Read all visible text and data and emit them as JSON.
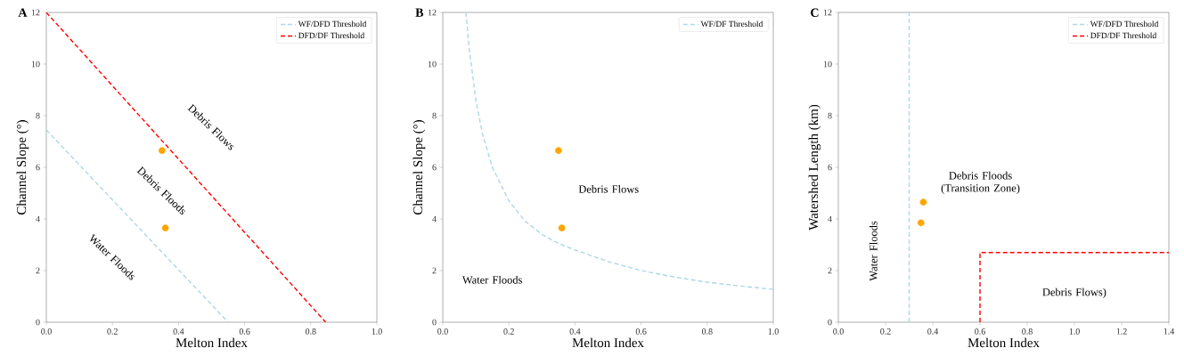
{
  "chart_data": [
    {
      "type": "line",
      "title": "A",
      "xlabel": "Melton Index",
      "ylabel": "Channel Slope (°)",
      "xlim": [
        0,
        1
      ],
      "ylim": [
        0,
        12
      ],
      "xticks": [
        {
          "value": 0,
          "label": "0.0"
        },
        {
          "value": 0.2,
          "label": "0.2"
        },
        {
          "value": 0.4,
          "label": "0.4"
        },
        {
          "value": 0.6,
          "label": "0.6"
        },
        {
          "value": 0.8,
          "label": "0.8"
        },
        {
          "value": 1,
          "label": "1.0"
        }
      ],
      "yticks": [
        0,
        2,
        4,
        6,
        8,
        10,
        12
      ],
      "legend": "top right",
      "line_style": "dashed",
      "series": [
        {
          "name": "WF/DFD Threshold",
          "color": "#add8e6",
          "x": [
            0,
            0.55
          ],
          "values": [
            7.45,
            0
          ]
        },
        {
          "name": "DFD/DF Threshold",
          "color": "#ff0000",
          "x": [
            0,
            0.845
          ],
          "values": [
            12,
            0
          ]
        },
        {
          "type": "scatter",
          "marker": "circle",
          "color": "#ffa500",
          "x": [
            0.35,
            0.36
          ],
          "values": [
            6.65,
            3.65
          ]
        }
      ],
      "annotations": [
        "Debris Flows",
        "Debris Floods",
        "Water Floods"
      ]
    },
    {
      "type": "line",
      "title": "B",
      "xlabel": "Melton Index",
      "ylabel": "Channel Slope (°)",
      "xlim": [
        0,
        1
      ],
      "ylim": [
        0,
        12
      ],
      "xticks": [
        {
          "value": 0,
          "label": "0.0"
        },
        {
          "value": 0.2,
          "label": "0.2"
        },
        {
          "value": 0.4,
          "label": "0.4"
        },
        {
          "value": 0.6,
          "label": "0.6"
        },
        {
          "value": 0.8,
          "label": "0.8"
        },
        {
          "value": 1,
          "label": "1.0"
        }
      ],
      "yticks": [
        0,
        2,
        4,
        6,
        8,
        10,
        12
      ],
      "legend": "top right",
      "line_style": "dashed",
      "series": [
        {
          "name": "WF/DF Threshold",
          "color": "#add8e6",
          "x": [
            0.07,
            0.08,
            0.1,
            0.12,
            0.15,
            0.2,
            0.25,
            0.3,
            0.35,
            0.4,
            0.5,
            0.6,
            0.7,
            0.8,
            0.9,
            1.0
          ],
          "values": [
            12,
            10.6,
            8.6,
            7.3,
            6.0,
            4.7,
            3.9,
            3.4,
            3.05,
            2.8,
            2.35,
            2.0,
            1.75,
            1.55,
            1.4,
            1.27
          ]
        },
        {
          "type": "scatter",
          "marker": "circle",
          "color": "#ffa500",
          "x": [
            0.35,
            0.36
          ],
          "values": [
            6.65,
            3.65
          ]
        }
      ],
      "annotations": [
        "Debris Flows",
        "Water Floods"
      ]
    },
    {
      "type": "line",
      "title": "C",
      "xlabel": "Melton Index",
      "ylabel": "Watershed Length (km)",
      "xlim": [
        0,
        1.4
      ],
      "ylim": [
        0,
        12
      ],
      "xticks": [
        {
          "value": 0,
          "label": "0.0"
        },
        {
          "value": 0.2,
          "label": "0.2"
        },
        {
          "value": 0.4,
          "label": "0.4"
        },
        {
          "value": 0.6,
          "label": "0.6"
        },
        {
          "value": 0.8,
          "label": "0.8"
        },
        {
          "value": 1,
          "label": "1.0"
        },
        {
          "value": 1.2,
          "label": "1.2"
        },
        {
          "value": 1.4,
          "label": "1.4"
        }
      ],
      "yticks": [
        0,
        2,
        4,
        6,
        8,
        10,
        12
      ],
      "legend": "top right",
      "line_style": "dashed",
      "series": [
        {
          "name": "WF/DFD Threshold",
          "color": "#add8e6",
          "x": [
            0.3,
            0.3
          ],
          "values": [
            0,
            12
          ]
        },
        {
          "name": "DFD/DF Threshold",
          "color": "#ff0000",
          "x": [
            0.6,
            0.6,
            1.4
          ],
          "values": [
            0,
            2.7,
            2.7
          ]
        },
        {
          "type": "scatter",
          "marker": "circle",
          "color": "#ffa500",
          "x": [
            0.36,
            0.35
          ],
          "values": [
            4.65,
            3.85
          ]
        }
      ],
      "annotations": [
        "Debris Floods (Transition Zone)",
        "Water Floods",
        "Debris Flows)"
      ]
    }
  ]
}
